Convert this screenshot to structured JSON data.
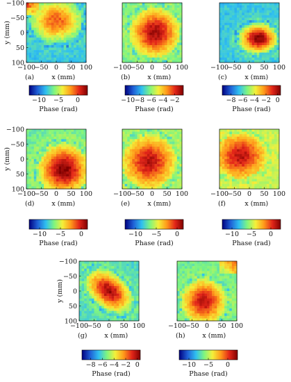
{
  "colors": {
    "colormap_stops": [
      "#00007f",
      "#1f5fd6",
      "#2fbff0",
      "#7ff57f",
      "#f4f03a",
      "#ff9a1a",
      "#e32619",
      "#7f0000"
    ]
  },
  "chart_data": [
    {
      "id": "a",
      "type": "heatmap",
      "panel_label": "(a)",
      "xlabel": "x (mm)",
      "ylabel": "y (mm)",
      "x_ticks": [
        "−100",
        "−50",
        "0",
        "50",
        "100"
      ],
      "y_ticks": [
        "−100",
        "−50",
        "0",
        "50",
        "100"
      ],
      "xlim": [
        -100,
        100
      ],
      "ylim": [
        -100,
        100
      ],
      "y_inverted": true,
      "colorbar": {
        "label": "Phase (rad)",
        "range": [
          -12.5,
          2.5
        ],
        "ticks": [
          "−10",
          "−5",
          "0"
        ],
        "tick_values": [
          -10,
          -5,
          0
        ]
      },
      "field": {
        "peak_x": 0,
        "peak_y": -40,
        "spread_x": 95,
        "spread_y": 80,
        "peak_level": 0.8,
        "floor_level": 0.3,
        "warm_corner": "top-left",
        "orientation": 0
      }
    },
    {
      "id": "b",
      "type": "heatmap",
      "panel_label": "(b)",
      "xlabel": "x (mm)",
      "ylabel": "",
      "x_ticks": [
        "−100",
        "−50",
        "0",
        "50",
        "100"
      ],
      "y_ticks": [],
      "xlim": [
        -100,
        100
      ],
      "ylim": [
        -100,
        100
      ],
      "y_inverted": true,
      "colorbar": {
        "label": "Phase (rad)",
        "range": [
          -10.5,
          -0.5
        ],
        "ticks": [
          "−10",
          "−8",
          "−6",
          "−4",
          "−2"
        ],
        "tick_values": [
          -10,
          -8,
          -6,
          -4,
          -2
        ]
      },
      "field": {
        "peak_x": 10,
        "peak_y": 0,
        "spread_x": 90,
        "spread_y": 90,
        "peak_level": 0.95,
        "floor_level": 0.4,
        "warm_corner": "",
        "orientation": 0
      }
    },
    {
      "id": "c",
      "type": "heatmap",
      "panel_label": "(c)",
      "xlabel": "x (mm)",
      "ylabel": "",
      "x_ticks": [
        "−100",
        "−50",
        "0",
        "50",
        "100"
      ],
      "y_ticks": [],
      "xlim": [
        -100,
        100
      ],
      "ylim": [
        -100,
        100
      ],
      "y_inverted": true,
      "colorbar": {
        "label": "Phase (rad)",
        "range": [
          -9.5,
          0.5
        ],
        "ticks": [
          "−8",
          "−6",
          "−4",
          "−2",
          "0"
        ],
        "tick_values": [
          -8,
          -6,
          -4,
          -2,
          0
        ]
      },
      "field": {
        "peak_x": 30,
        "peak_y": 20,
        "spread_x": 70,
        "spread_y": 55,
        "peak_level": 1.0,
        "floor_level": 0.3,
        "warm_corner": "",
        "orientation": 0
      }
    },
    {
      "id": "d",
      "type": "heatmap",
      "panel_label": "(d)",
      "xlabel": "x (mm)",
      "ylabel": "y (mm)",
      "x_ticks": [
        "−100",
        "−50",
        "0",
        "50",
        "100"
      ],
      "y_ticks": [
        "−100",
        "−50",
        "0",
        "50",
        "100"
      ],
      "xlim": [
        -100,
        100
      ],
      "ylim": [
        -100,
        100
      ],
      "y_inverted": true,
      "colorbar": {
        "label": "Phase (rad)",
        "range": [
          -12.5,
          1.5
        ],
        "ticks": [
          "−10",
          "−5",
          "0"
        ],
        "tick_values": [
          -10,
          -5,
          0
        ]
      },
      "field": {
        "peak_x": 25,
        "peak_y": 35,
        "spread_x": 90,
        "spread_y": 90,
        "peak_level": 1.0,
        "floor_level": 0.4,
        "warm_corner": "",
        "orientation": 0
      }
    },
    {
      "id": "e",
      "type": "heatmap",
      "panel_label": "(e)",
      "xlabel": "x (mm)",
      "ylabel": "",
      "x_ticks": [
        "−100",
        "−50",
        "0",
        "50",
        "100"
      ],
      "y_ticks": [],
      "xlim": [
        -100,
        100
      ],
      "ylim": [
        -100,
        100
      ],
      "y_inverted": true,
      "colorbar": {
        "label": "Phase (rad)",
        "range": [
          -12.5,
          1.5
        ],
        "ticks": [
          "−10",
          "−5",
          "0"
        ],
        "tick_values": [
          -10,
          -5,
          0
        ]
      },
      "field": {
        "peak_x": -10,
        "peak_y": 10,
        "spread_x": 95,
        "spread_y": 95,
        "peak_level": 0.92,
        "floor_level": 0.45,
        "warm_corner": "",
        "orientation": 0
      }
    },
    {
      "id": "f",
      "type": "heatmap",
      "panel_label": "(f)",
      "xlabel": "x (mm)",
      "ylabel": "",
      "x_ticks": [
        "−100",
        "−50",
        "0",
        "50",
        "100"
      ],
      "y_ticks": [],
      "xlim": [
        -100,
        100
      ],
      "ylim": [
        -100,
        100
      ],
      "y_inverted": true,
      "colorbar": {
        "label": "Phase (rad)",
        "range": [
          -12.5,
          2.5
        ],
        "ticks": [
          "−10",
          "−5",
          "0"
        ],
        "tick_values": [
          -10,
          -5,
          0
        ]
      },
      "field": {
        "peak_x": -30,
        "peak_y": -10,
        "spread_x": 90,
        "spread_y": 80,
        "peak_level": 0.92,
        "floor_level": 0.5,
        "warm_corner": "",
        "orientation": 0
      }
    },
    {
      "id": "g",
      "type": "heatmap",
      "panel_label": "(g)",
      "xlabel": "x (mm)",
      "ylabel": "y (mm)",
      "x_ticks": [
        "−100",
        "−50",
        "0",
        "50",
        "100"
      ],
      "y_ticks": [
        "−100",
        "−50",
        "0",
        "50",
        "100"
      ],
      "xlim": [
        -100,
        100
      ],
      "ylim": [
        -100,
        100
      ],
      "y_inverted": true,
      "colorbar": {
        "label": "Phase (rad)",
        "range": [
          -9.5,
          0.5
        ],
        "ticks": [
          "−8",
          "−6",
          "−4",
          "−2",
          "0"
        ],
        "tick_values": [
          -8,
          -6,
          -4,
          -2,
          0
        ]
      },
      "field": {
        "peak_x": 0,
        "peak_y": 0,
        "spread_x": 95,
        "spread_y": 60,
        "peak_level": 0.95,
        "floor_level": 0.35,
        "warm_corner": "",
        "orientation": 0.7
      }
    },
    {
      "id": "h",
      "type": "heatmap",
      "panel_label": "(h)",
      "xlabel": "x (mm)",
      "ylabel": "",
      "x_ticks": [
        "−100",
        "−50",
        "0",
        "50",
        "100"
      ],
      "y_ticks": [],
      "xlim": [
        -100,
        100
      ],
      "ylim": [
        -100,
        100
      ],
      "y_inverted": true,
      "colorbar": {
        "label": "Phase (rad)",
        "range": [
          -12.5,
          2.5
        ],
        "ticks": [
          "−10",
          "−5",
          "0"
        ],
        "tick_values": [
          -10,
          -5,
          0
        ]
      },
      "field": {
        "peak_x": -10,
        "peak_y": 35,
        "spread_x": 80,
        "spread_y": 80,
        "peak_level": 0.92,
        "floor_level": 0.4,
        "warm_corner": "top-right",
        "orientation": 0
      }
    }
  ]
}
